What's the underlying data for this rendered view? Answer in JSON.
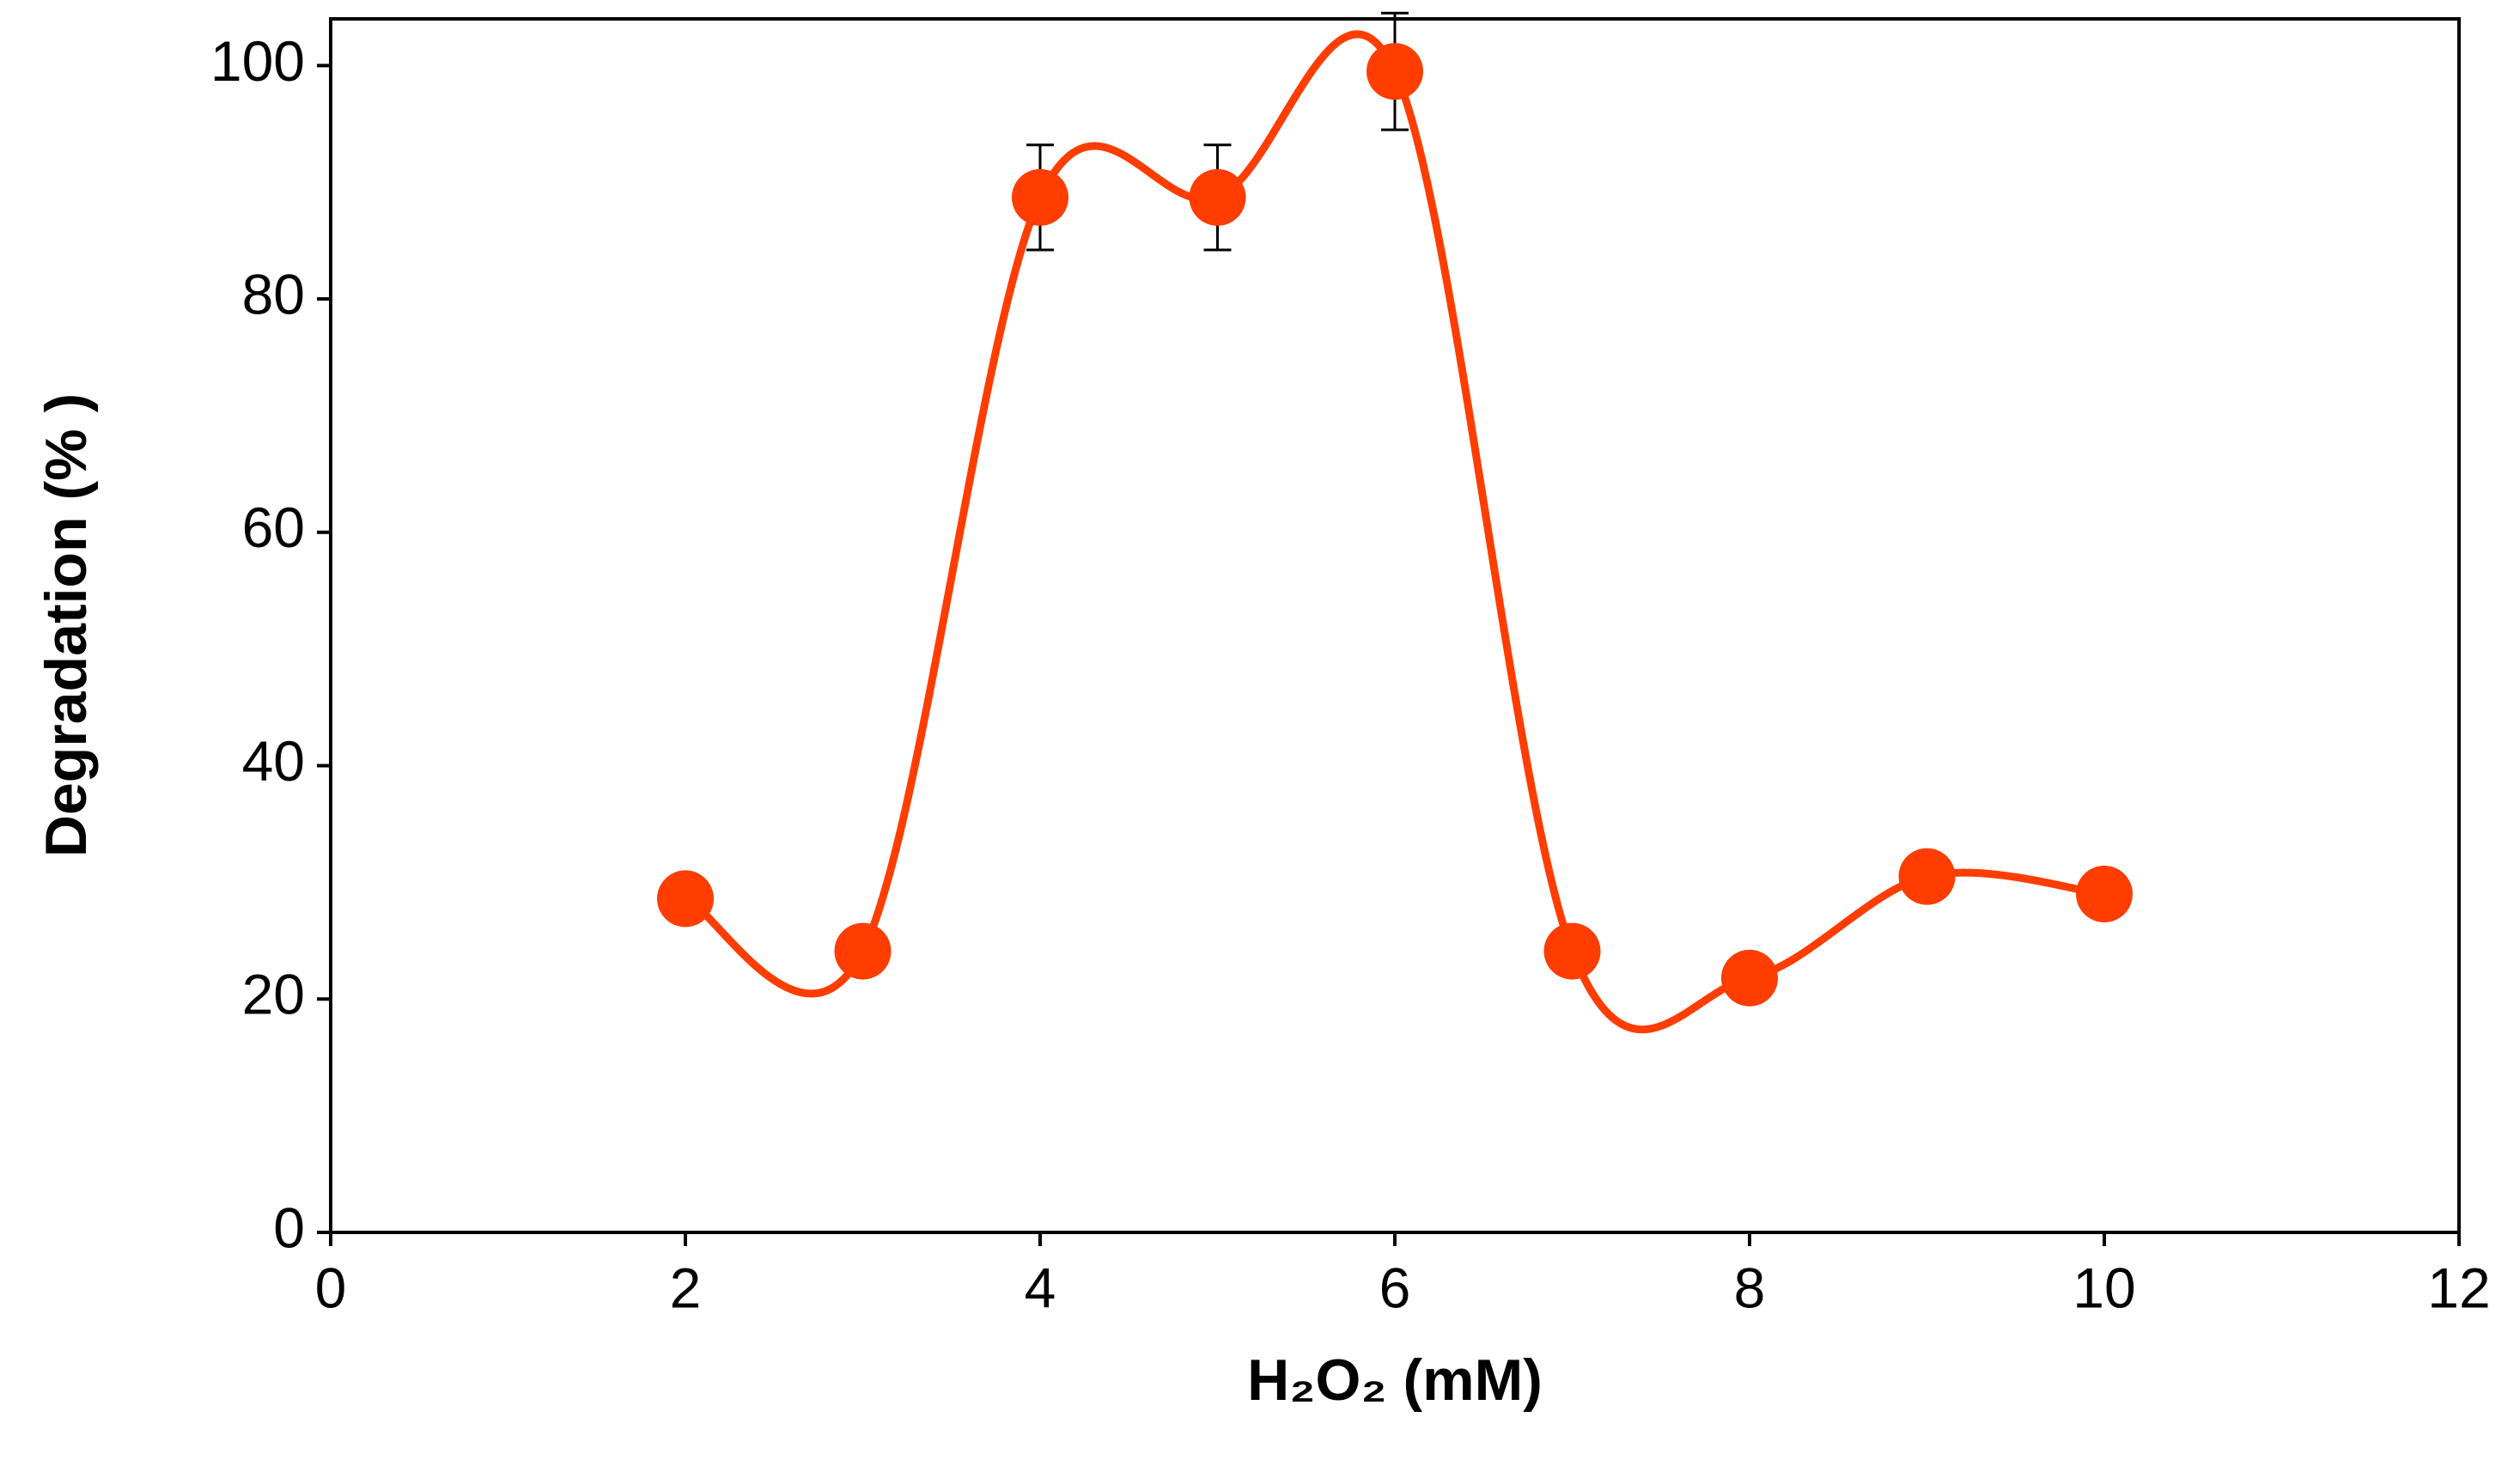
{
  "chart_data": {
    "type": "line",
    "x_label": "H₂O₂ (mM)",
    "y_label": "Degradation (% )",
    "x": [
      2,
      3,
      4,
      5,
      6,
      7,
      8,
      9,
      10
    ],
    "series": [
      {
        "color": "#ff3d00",
        "values": [
          28.6,
          24.1,
          88.7,
          88.7,
          99.5,
          24.1,
          21.8,
          30.5,
          29.0
        ],
        "errors": [
          null,
          null,
          4.5,
          4.5,
          5.0,
          null,
          null,
          null,
          null
        ]
      }
    ],
    "xlim": [
      0,
      12
    ],
    "xticks": [
      0,
      2,
      4,
      6,
      8,
      10,
      12
    ],
    "ylim": [
      0,
      104
    ],
    "yticks": [
      0,
      20,
      40,
      60,
      80,
      100
    ],
    "smooth": true
  }
}
